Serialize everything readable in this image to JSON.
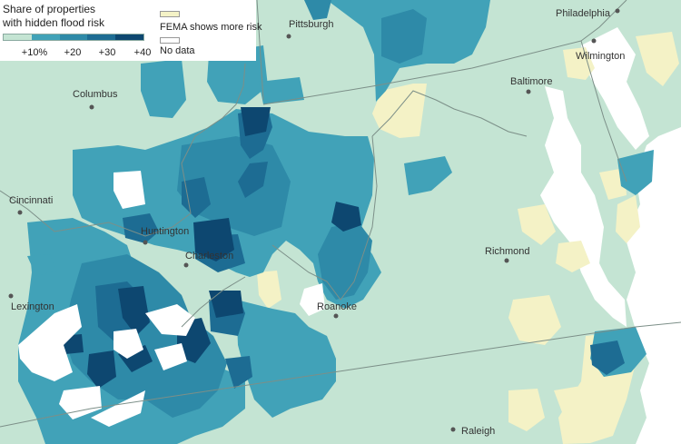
{
  "legend": {
    "title_line1": "Share of properties",
    "title_line2": "with hidden flood risk",
    "scale_ticks": [
      "+10%",
      "+20",
      "+30",
      "+40"
    ],
    "scale_colors": [
      "#c4e4d3",
      "#41a2b8",
      "#2e8aa8",
      "#1d6c93",
      "#0d4770"
    ],
    "fema_label": "FEMA shows more risk",
    "fema_color": "#f4f2c6",
    "nodata_label": "No data",
    "nodata_color": "#ffffff"
  },
  "colors": {
    "base_land": "#c4e4d3",
    "light_blue": "#41a2b8",
    "mid_blue": "#2e8aa8",
    "dark_blue": "#1d6c93",
    "darkest_blue": "#0d4770",
    "water": "#ffffff",
    "state_border": "#7c8f88"
  },
  "cities": [
    {
      "name": "Pittsburgh",
      "id": "pittsburgh"
    },
    {
      "name": "Philadelphia",
      "id": "philadelphia"
    },
    {
      "name": "Columbus",
      "id": "columbus"
    },
    {
      "name": "Wilmington",
      "id": "wilmington"
    },
    {
      "name": "Baltimore",
      "id": "baltimore"
    },
    {
      "name": "Cincinnati",
      "id": "cincinnati"
    },
    {
      "name": "Huntington",
      "id": "huntington"
    },
    {
      "name": "Charleston",
      "id": "charleston"
    },
    {
      "name": "Richmond",
      "id": "richmond"
    },
    {
      "name": "Lexington",
      "id": "lexington"
    },
    {
      "name": "Roanoke",
      "id": "roanoke"
    },
    {
      "name": "Raleigh",
      "id": "raleigh"
    }
  ]
}
